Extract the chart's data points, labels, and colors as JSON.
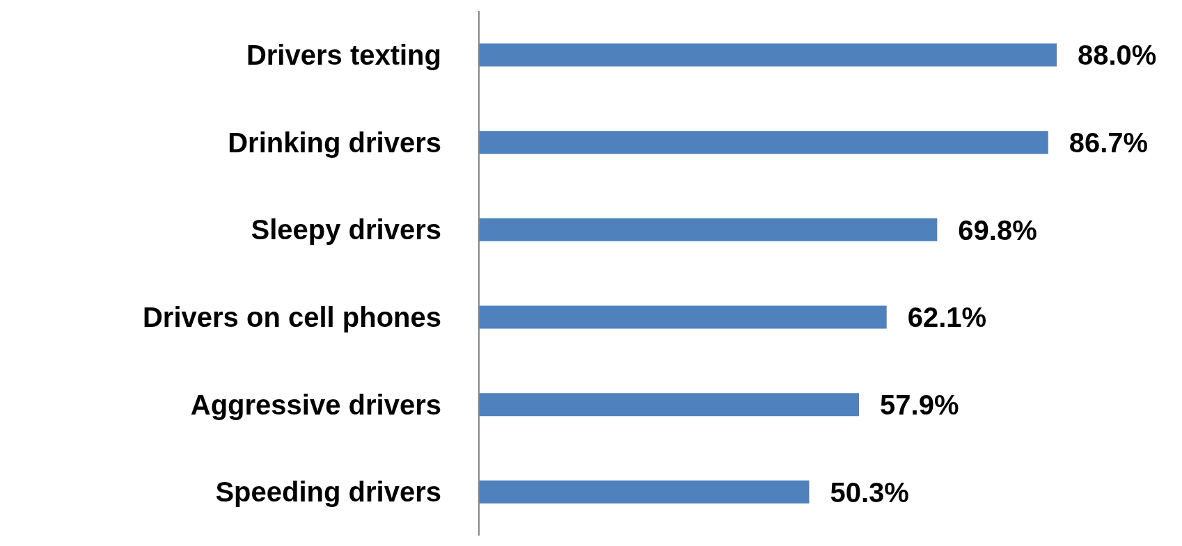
{
  "chart_data": {
    "type": "bar",
    "orientation": "horizontal",
    "categories": [
      "Drivers texting",
      "Drinking drivers",
      "Sleepy drivers",
      "Drivers on cell phones",
      "Aggressive drivers",
      "Speeding drivers"
    ],
    "values": [
      88.0,
      86.7,
      69.8,
      62.1,
      57.9,
      50.3
    ],
    "value_labels": [
      "88.0%",
      "86.7%",
      "69.8%",
      "62.1%",
      "57.9%",
      "50.3%"
    ],
    "color": "#4f81bd",
    "grid": false,
    "legend": false,
    "tick_labels": "y"
  }
}
